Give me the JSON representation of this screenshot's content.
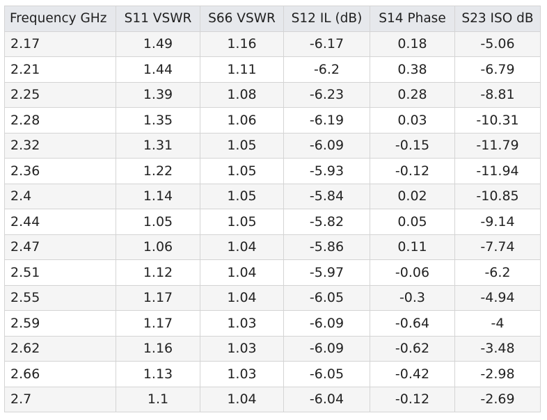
{
  "chart_data": {
    "type": "table",
    "columns": [
      "Frequency GHz",
      "S11 VSWR",
      "S66 VSWR",
      "S12 IL (dB)",
      "S14 Phase",
      "S23 ISO dB"
    ],
    "rows": [
      [
        "2.17",
        "1.49",
        "1.16",
        "-6.17",
        "0.18",
        "-5.06"
      ],
      [
        "2.21",
        "1.44",
        "1.11",
        "-6.2",
        "0.38",
        "-6.79"
      ],
      [
        "2.25",
        "1.39",
        "1.08",
        "-6.23",
        "0.28",
        "-8.81"
      ],
      [
        "2.28",
        "1.35",
        "1.06",
        "-6.19",
        "0.03",
        "-10.31"
      ],
      [
        "2.32",
        "1.31",
        "1.05",
        "-6.09",
        "-0.15",
        "-11.79"
      ],
      [
        "2.36",
        "1.22",
        "1.05",
        "-5.93",
        "-0.12",
        "-11.94"
      ],
      [
        "2.4",
        "1.14",
        "1.05",
        "-5.84",
        "0.02",
        "-10.85"
      ],
      [
        "2.44",
        "1.05",
        "1.05",
        "-5.82",
        "0.05",
        "-9.14"
      ],
      [
        "2.47",
        "1.06",
        "1.04",
        "-5.86",
        "0.11",
        "-7.74"
      ],
      [
        "2.51",
        "1.12",
        "1.04",
        "-5.97",
        "-0.06",
        "-6.2"
      ],
      [
        "2.55",
        "1.17",
        "1.04",
        "-6.05",
        "-0.3",
        "-4.94"
      ],
      [
        "2.59",
        "1.17",
        "1.03",
        "-6.09",
        "-0.64",
        "-4"
      ],
      [
        "2.62",
        "1.16",
        "1.03",
        "-6.09",
        "-0.62",
        "-3.48"
      ],
      [
        "2.66",
        "1.13",
        "1.03",
        "-6.05",
        "-0.42",
        "-2.98"
      ],
      [
        "2.7",
        "1.1",
        "1.04",
        "-6.04",
        "-0.12",
        "-2.69"
      ]
    ]
  },
  "colors": {
    "header_bg": "#e6e8ec",
    "row_odd_bg": "#f5f5f5",
    "row_even_bg": "#ffffff",
    "border": "#d4d4d4",
    "text": "#222222"
  }
}
